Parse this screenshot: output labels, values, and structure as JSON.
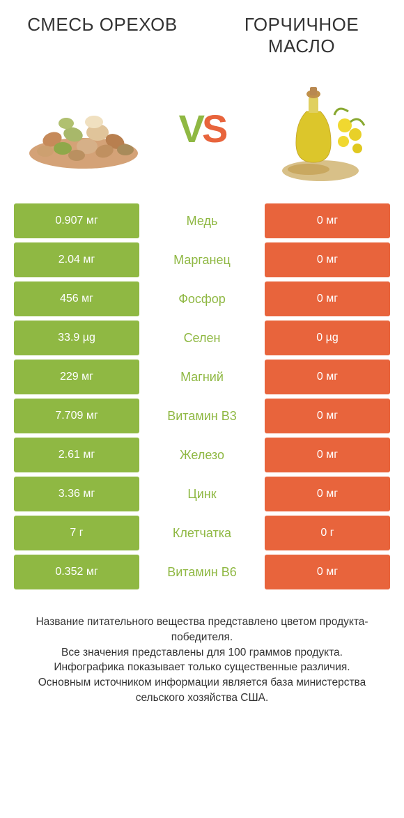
{
  "header": {
    "left_title": "СМЕСЬ ОРЕХОВ",
    "right_title": "ГОРЧИЧНОЕ МАСЛО"
  },
  "vs": {
    "v": "V",
    "s": "S"
  },
  "colors": {
    "left": "#8fb843",
    "right": "#e8643c",
    "text": "#333333",
    "bg": "#ffffff"
  },
  "comparison": {
    "type": "table",
    "rows": [
      {
        "left": "0.907 мг",
        "label": "Медь",
        "right": "0 мг"
      },
      {
        "left": "2.04 мг",
        "label": "Марганец",
        "right": "0 мг"
      },
      {
        "left": "456 мг",
        "label": "Фосфор",
        "right": "0 мг"
      },
      {
        "left": "33.9 µg",
        "label": "Селен",
        "right": "0 µg"
      },
      {
        "left": "229 мг",
        "label": "Магний",
        "right": "0 мг"
      },
      {
        "left": "7.709 мг",
        "label": "Витамин B3",
        "right": "0 мг"
      },
      {
        "left": "2.61 мг",
        "label": "Железо",
        "right": "0 мг"
      },
      {
        "left": "3.36 мг",
        "label": "Цинк",
        "right": "0 мг"
      },
      {
        "left": "7 г",
        "label": "Клетчатка",
        "right": "0 г"
      },
      {
        "left": "0.352 мг",
        "label": "Витамин B6",
        "right": "0 мг"
      }
    ]
  },
  "footer": {
    "line1": "Название питательного вещества представлено цветом продукта-победителя.",
    "line2": "Все значения представлены для 100 граммов продукта.",
    "line3": "Инфографика показывает только существенные различия.",
    "line4": "Основным источником информации является база министерства сельского хозяйства США."
  }
}
